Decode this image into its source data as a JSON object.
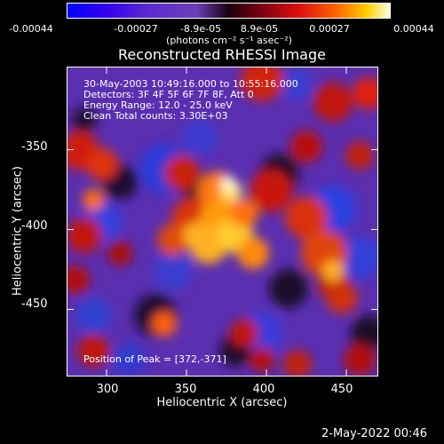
{
  "colorbar": {
    "ticks": [
      "-0.00044",
      "-0.00027",
      "-8.9e-05",
      "8.9e-05",
      "0.00027",
      "0.00044"
    ],
    "units": "(photons cm⁻² s⁻¹ asec⁻²)"
  },
  "info": {
    "line1": "30-May-2003 10:49:16.000 to 10:55:16.000",
    "line2": "Detectors: 3F 4F 5F 6F 7F 8F, Att 0",
    "line3": "Energy Range: 12.0 - 25.0 keV",
    "line4": "Clean    Total counts: 3.30E+03",
    "peak": "Position of Peak = [372,-371]"
  },
  "footer": {
    "timestamp": "2-May-2022 00:46"
  },
  "chart_data": {
    "type": "heatmap",
    "title": "Reconstructed RHESSI Image",
    "xlabel": "Heliocentric X (arcsec)",
    "ylabel": "Heliocentric Y (arcsec)",
    "xlim": [
      275,
      470
    ],
    "ylim": [
      -492,
      -298
    ],
    "xticks": [
      "300",
      "350",
      "400",
      "450"
    ],
    "yticks": [
      "-350",
      "-400",
      "-450"
    ],
    "peak": [
      372,
      -371
    ]
  }
}
